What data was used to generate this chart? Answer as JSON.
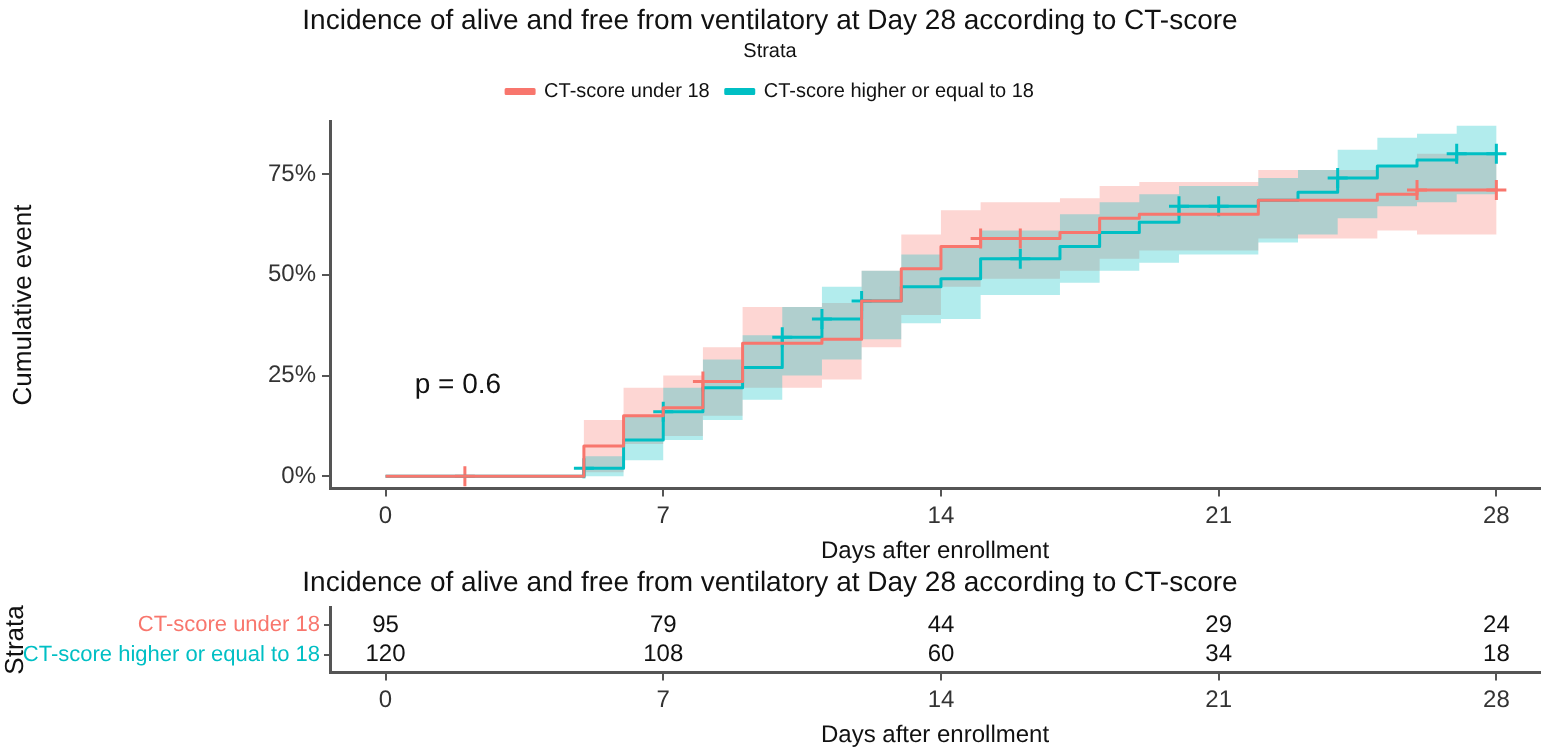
{
  "chart_data": [
    {
      "type": "step",
      "title": "Incidence of alive and free from ventilatory at Day 28 according to CT-score",
      "xlabel": "Days after enrollment",
      "ylabel": "Cumulative event",
      "legend_title": "Strata",
      "legend": "top",
      "grid": false,
      "line_style": "solid",
      "xlim": [
        -1.4,
        29.1
      ],
      "xticks": [
        0,
        7,
        14,
        21,
        28
      ],
      "ylim": [
        -3,
        88
      ],
      "yticks": [
        {
          "value": 0,
          "label": "0%"
        },
        {
          "value": 25,
          "label": "25%"
        },
        {
          "value": 50,
          "label": "50%"
        },
        {
          "value": 75,
          "label": "75%"
        }
      ],
      "annotations": [
        "p = 0.6"
      ],
      "series": [
        {
          "name": "CT-score under 18",
          "color": "#f8766d",
          "x": [
            0,
            5,
            6,
            7,
            8,
            9,
            11,
            12,
            13,
            14,
            15,
            17,
            18,
            19,
            22,
            25,
            26,
            28
          ],
          "values": [
            0,
            7.5,
            15,
            17,
            23.5,
            33,
            34,
            43.5,
            51.5,
            57,
            59,
            60.5,
            64,
            65,
            68.5,
            70,
            71,
            71
          ],
          "lower": [
            null,
            1,
            8,
            10,
            15,
            22,
            24,
            32,
            40,
            47,
            49,
            51,
            54,
            56,
            59,
            61,
            60,
            60
          ],
          "upper": [
            null,
            14,
            22,
            25,
            32,
            42,
            43,
            51,
            60,
            66,
            68,
            69,
            72,
            73,
            76,
            77,
            80,
            80
          ]
        },
        {
          "name": "CT-score higher or equal to 18",
          "color": "#00bfc4",
          "x": [
            0,
            5,
            6,
            7,
            8,
            9,
            10,
            11,
            12,
            13,
            14,
            15,
            17,
            18,
            19,
            20,
            22,
            23,
            24,
            25,
            26,
            27,
            28
          ],
          "values": [
            0,
            2,
            9,
            16,
            22,
            27,
            34.5,
            39,
            43.5,
            47,
            49,
            54,
            57,
            60.5,
            63,
            67,
            68.5,
            70.5,
            74,
            77,
            78.5,
            80,
            80
          ],
          "lower": [
            null,
            0,
            4,
            9,
            14,
            19,
            25,
            29,
            34,
            38,
            39,
            45,
            48,
            51,
            53,
            55,
            58,
            60,
            64,
            67,
            68,
            70,
            70
          ],
          "upper": [
            null,
            5,
            15,
            22,
            29,
            35,
            42,
            47,
            51,
            55,
            57,
            61,
            65,
            68,
            70,
            72,
            74,
            76,
            81,
            84,
            85,
            87,
            87
          ]
        },
        {
          "type": "scatter",
          "marker": "cross",
          "color": "#f8766d",
          "x": [
            2,
            8,
            15,
            16,
            26,
            28
          ],
          "values": [
            0,
            23.5,
            59,
            59,
            71,
            71
          ]
        },
        {
          "type": "scatter",
          "marker": "cross",
          "color": "#00bfc4",
          "x": [
            5,
            7,
            10,
            11,
            12,
            16,
            20,
            21,
            24,
            27,
            28
          ],
          "values": [
            2,
            16,
            34.5,
            39,
            43.5,
            54,
            67,
            67,
            74,
            80,
            80
          ]
        }
      ]
    },
    {
      "type": "heatmap",
      "title": "Incidence of alive and free from ventilatory at Day 28 according to CT-score",
      "xlabel": "Days after enrollment",
      "ylabel": "Strata",
      "data_labels": true,
      "categories": [
        "0",
        "7",
        "14",
        "21",
        "28"
      ],
      "y_categories": [
        "CT-score under 18",
        "CT-score higher or equal to 18"
      ],
      "colors": [
        "#f8766d",
        "#00bfc4"
      ],
      "cells": [
        [
          95,
          79,
          44,
          29,
          24
        ],
        [
          120,
          108,
          60,
          34,
          18
        ]
      ]
    }
  ]
}
